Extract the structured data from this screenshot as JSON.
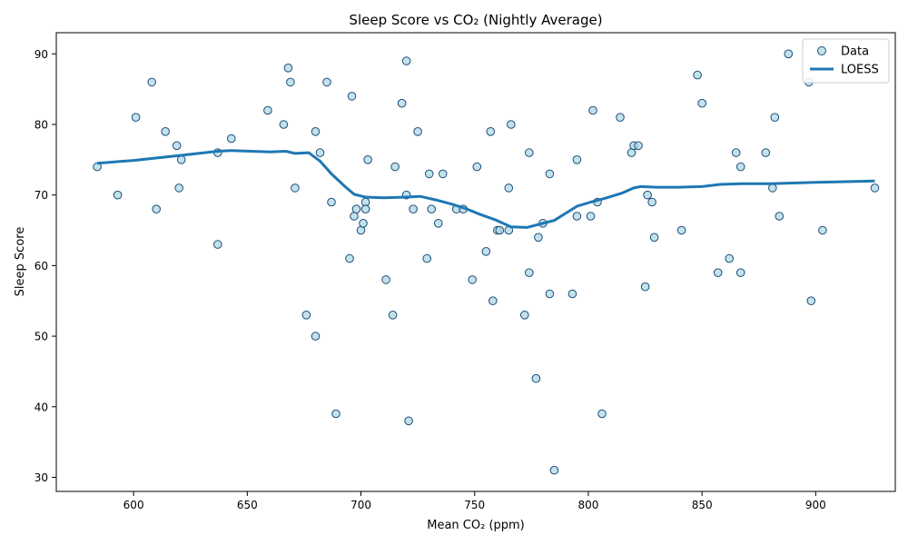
{
  "chart_data": {
    "type": "scatter",
    "title": "Sleep Score vs CO₂ (Nightly Average)",
    "xlabel": "Mean CO₂ (ppm)",
    "ylabel": "Sleep Score",
    "xlim": [
      566,
      935
    ],
    "ylim": [
      28,
      93
    ],
    "xticks": [
      600,
      650,
      700,
      750,
      800,
      850,
      900
    ],
    "yticks": [
      30,
      40,
      50,
      60,
      70,
      80,
      90
    ],
    "grid": false,
    "legend_position": "top-right",
    "series": [
      {
        "name": "Data",
        "type": "scatter",
        "color": "#add8e6",
        "edge_color": "#1f4e79",
        "points": [
          [
            584,
            74
          ],
          [
            593,
            70
          ],
          [
            601,
            81
          ],
          [
            608,
            86
          ],
          [
            610,
            68
          ],
          [
            614,
            79
          ],
          [
            619,
            77
          ],
          [
            620,
            71
          ],
          [
            621,
            75
          ],
          [
            637,
            76
          ],
          [
            637,
            63
          ],
          [
            643,
            78
          ],
          [
            659,
            82
          ],
          [
            666,
            80
          ],
          [
            668,
            88
          ],
          [
            669,
            86
          ],
          [
            671,
            71
          ],
          [
            676,
            53
          ],
          [
            680,
            79
          ],
          [
            680,
            50
          ],
          [
            682,
            76
          ],
          [
            685,
            86
          ],
          [
            687,
            69
          ],
          [
            689,
            39
          ],
          [
            695,
            61
          ],
          [
            696,
            84
          ],
          [
            697,
            67
          ],
          [
            698,
            68
          ],
          [
            700,
            65
          ],
          [
            701,
            66
          ],
          [
            702,
            69
          ],
          [
            702,
            68
          ],
          [
            703,
            75
          ],
          [
            711,
            58
          ],
          [
            714,
            53
          ],
          [
            715,
            74
          ],
          [
            718,
            83
          ],
          [
            720,
            70
          ],
          [
            720,
            89
          ],
          [
            721,
            38
          ],
          [
            723,
            68
          ],
          [
            725,
            79
          ],
          [
            729,
            61
          ],
          [
            730,
            73
          ],
          [
            731,
            68
          ],
          [
            734,
            66
          ],
          [
            736,
            73
          ],
          [
            742,
            68
          ],
          [
            745,
            68
          ],
          [
            749,
            58
          ],
          [
            751,
            74
          ],
          [
            755,
            62
          ],
          [
            757,
            79
          ],
          [
            758,
            55
          ],
          [
            760,
            65
          ],
          [
            761,
            65
          ],
          [
            765,
            65
          ],
          [
            765,
            71
          ],
          [
            766,
            80
          ],
          [
            772,
            53
          ],
          [
            774,
            76
          ],
          [
            774,
            59
          ],
          [
            777,
            44
          ],
          [
            778,
            64
          ],
          [
            780,
            66
          ],
          [
            783,
            73
          ],
          [
            783,
            56
          ],
          [
            785,
            31
          ],
          [
            793,
            56
          ],
          [
            795,
            75
          ],
          [
            795,
            67
          ],
          [
            801,
            67
          ],
          [
            802,
            82
          ],
          [
            804,
            69
          ],
          [
            806,
            39
          ],
          [
            814,
            81
          ],
          [
            819,
            76
          ],
          [
            820,
            77
          ],
          [
            822,
            77
          ],
          [
            825,
            57
          ],
          [
            826,
            70
          ],
          [
            828,
            69
          ],
          [
            829,
            64
          ],
          [
            841,
            65
          ],
          [
            848,
            87
          ],
          [
            850,
            83
          ],
          [
            857,
            59
          ],
          [
            862,
            61
          ],
          [
            865,
            76
          ],
          [
            867,
            74
          ],
          [
            867,
            59
          ],
          [
            878,
            76
          ],
          [
            881,
            71
          ],
          [
            882,
            81
          ],
          [
            884,
            67
          ],
          [
            888,
            90
          ],
          [
            897,
            86
          ],
          [
            898,
            55
          ],
          [
            903,
            65
          ],
          [
            926,
            71
          ]
        ]
      },
      {
        "name": "LOESS",
        "type": "line",
        "color": "#1f77b4",
        "points": [
          [
            584,
            74.5
          ],
          [
            600,
            74.9
          ],
          [
            620,
            75.6
          ],
          [
            637,
            76.2
          ],
          [
            643,
            76.3
          ],
          [
            660,
            76.1
          ],
          [
            667,
            76.2
          ],
          [
            671,
            75.9
          ],
          [
            677,
            76.0
          ],
          [
            682,
            74.8
          ],
          [
            687,
            73.0
          ],
          [
            693,
            71.2
          ],
          [
            697,
            70.1
          ],
          [
            702,
            69.7
          ],
          [
            710,
            69.6
          ],
          [
            720,
            69.7
          ],
          [
            726,
            69.8
          ],
          [
            733,
            69.3
          ],
          [
            740,
            68.7
          ],
          [
            746,
            68.1
          ],
          [
            752,
            67.3
          ],
          [
            759,
            66.5
          ],
          [
            766,
            65.5
          ],
          [
            773,
            65.4
          ],
          [
            779,
            65.9
          ],
          [
            785,
            66.4
          ],
          [
            790,
            67.4
          ],
          [
            795,
            68.4
          ],
          [
            801,
            69.0
          ],
          [
            807,
            69.5
          ],
          [
            815,
            70.3
          ],
          [
            820,
            71.0
          ],
          [
            823,
            71.2
          ],
          [
            830,
            71.1
          ],
          [
            840,
            71.1
          ],
          [
            850,
            71.2
          ],
          [
            858,
            71.5
          ],
          [
            867,
            71.6
          ],
          [
            880,
            71.6
          ],
          [
            900,
            71.8
          ],
          [
            926,
            72.0
          ]
        ]
      }
    ]
  }
}
